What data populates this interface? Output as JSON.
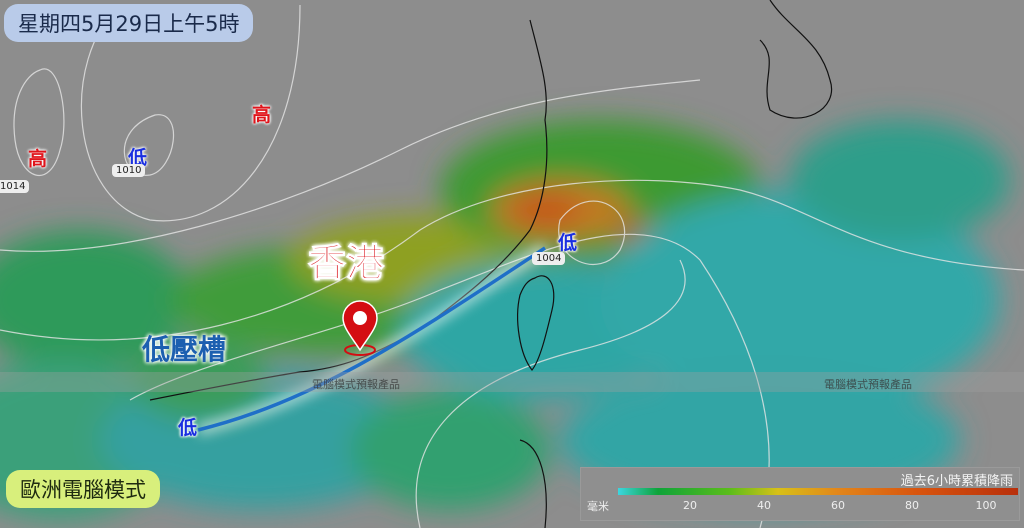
{
  "header": {
    "title": "星期四5月29日上午5時"
  },
  "footer": {
    "model": "歐洲電腦模式"
  },
  "pressure_systems": [
    {
      "type": "high",
      "label": "高"
    },
    {
      "type": "high",
      "label": "高"
    },
    {
      "type": "low",
      "label": "低"
    },
    {
      "type": "low",
      "label": "低"
    },
    {
      "type": "low",
      "label": "低"
    }
  ],
  "isobars": [
    "1014",
    "1010",
    "1004"
  ],
  "annotations": {
    "city": "香港",
    "trough": "低壓槽"
  },
  "watermark": "電腦模式預報產品",
  "legend": {
    "title": "過去6小時累積降雨",
    "unit": "毫米",
    "ticks": [
      "20",
      "40",
      "60",
      "80",
      "100"
    ]
  },
  "colors": {
    "high": "#e0141b",
    "low": "#1a2fe0",
    "trough_line": "#1f6fc8",
    "marker": "#d40d12"
  }
}
